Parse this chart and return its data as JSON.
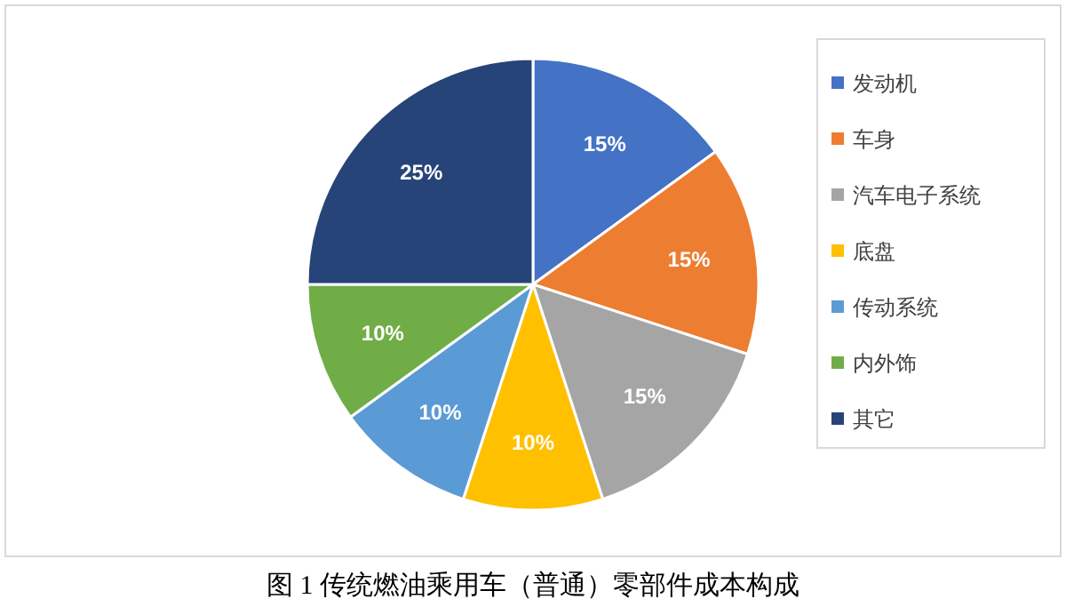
{
  "chart_data": {
    "type": "pie",
    "categories": [
      "发动机",
      "车身",
      "汽车电子系统",
      "底盘",
      "传动系统",
      "内外饰",
      "其它"
    ],
    "values": [
      15,
      15,
      15,
      10,
      10,
      10,
      25
    ],
    "colors": [
      "#4472c4",
      "#ed7d31",
      "#a5a5a5",
      "#ffc000",
      "#5b9bd5",
      "#70ad47",
      "#264478"
    ],
    "value_labels": [
      "15%",
      "15%",
      "15%",
      "10%",
      "10%",
      "10%",
      "25%"
    ],
    "legend": "right",
    "annotations": [
      "图 1 传统燃油乘用车（普通）零部件成本构成"
    ]
  }
}
